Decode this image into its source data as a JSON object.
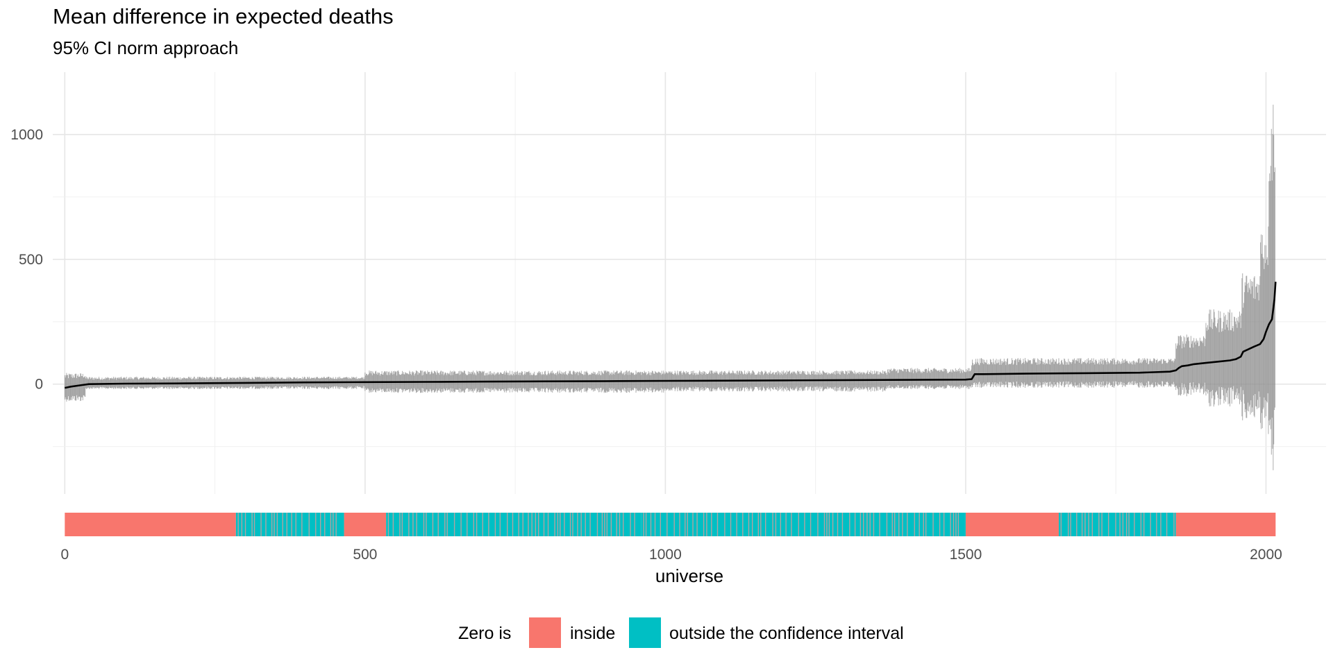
{
  "chart_data": {
    "type": "line",
    "title": "Mean difference in expected deaths",
    "subtitle": "95% CI norm approach",
    "xlabel": "universe",
    "ylabel": "",
    "xlim": [
      -20,
      2100
    ],
    "ylim": [
      -440,
      1250
    ],
    "x_ticks": [
      0,
      500,
      1000,
      1500,
      2000
    ],
    "x_tick_labels": [
      "0",
      "500",
      "1000",
      "1500",
      "2000"
    ],
    "y_ticks": [
      0,
      500,
      1000
    ],
    "y_tick_labels": [
      "0",
      "500",
      "1000"
    ],
    "grid": true,
    "legend_position": "bottom",
    "n_universes": 2016,
    "mean_curve": {
      "x": [
        0,
        10,
        25,
        40,
        100,
        200,
        300,
        400,
        500,
        600,
        700,
        800,
        900,
        1000,
        1100,
        1200,
        1300,
        1400,
        1500,
        1510,
        1515,
        1530,
        1600,
        1700,
        1790,
        1840,
        1850,
        1855,
        1860,
        1870,
        1880,
        1900,
        1920,
        1940,
        1950,
        1958,
        1962,
        1980,
        1990,
        1996,
        2000,
        2005,
        2010,
        2012,
        2014,
        2016
      ],
      "y": [
        -15,
        -10,
        -5,
        0,
        2,
        3,
        5,
        7,
        8,
        9,
        10,
        11,
        12,
        13,
        14,
        15,
        16,
        17,
        18,
        20,
        40,
        40,
        42,
        44,
        46,
        50,
        55,
        65,
        72,
        75,
        80,
        85,
        90,
        95,
        100,
        110,
        130,
        150,
        160,
        180,
        210,
        240,
        260,
        300,
        340,
        410
      ]
    },
    "ci_whiskers": [
      {
        "x": [
          0,
          35
        ],
        "lower": -70,
        "upper": 45
      },
      {
        "x": [
          35,
          500
        ],
        "lower": -20,
        "upper": 30
      },
      {
        "x": [
          500,
          1000
        ],
        "lower": -35,
        "upper": 55
      },
      {
        "x": [
          1000,
          1370
        ],
        "lower": -30,
        "upper": 55
      },
      {
        "x": [
          1370,
          1510
        ],
        "lower": -20,
        "upper": 65
      },
      {
        "x": [
          1510,
          1850
        ],
        "lower": -15,
        "upper": 105
      },
      {
        "x": [
          1850,
          1900
        ],
        "lower": -50,
        "upper": 200
      },
      {
        "x": [
          1900,
          1960
        ],
        "lower": -90,
        "upper": 300
      },
      {
        "x": [
          1960,
          1990
        ],
        "lower": -150,
        "upper": 450
      },
      {
        "x": [
          1990,
          2005
        ],
        "lower": -220,
        "upper": 650
      },
      {
        "x": [
          2005,
          2016
        ],
        "lower": -400,
        "upper": 1190
      }
    ],
    "zero_status_strip": {
      "legend_title": "Zero is",
      "categories": [
        "inside",
        "outside the confidence interval"
      ],
      "colors": {
        "inside": "#F8766D",
        "outside the confidence interval": "#00BFC4"
      },
      "segments": [
        {
          "from": 0,
          "to": 285,
          "status": "inside"
        },
        {
          "from": 285,
          "to": 465,
          "status": "outside the confidence interval"
        },
        {
          "from": 465,
          "to": 535,
          "status": "inside"
        },
        {
          "from": 535,
          "to": 960,
          "status": "outside the confidence interval"
        },
        {
          "from": 960,
          "to": 1385,
          "status": "outside the confidence interval"
        },
        {
          "from": 1385,
          "to": 1500,
          "status": "outside the confidence interval"
        },
        {
          "from": 1500,
          "to": 1655,
          "status": "inside"
        },
        {
          "from": 1655,
          "to": 1850,
          "status": "outside the confidence interval"
        },
        {
          "from": 1850,
          "to": 2016,
          "status": "inside"
        }
      ]
    },
    "colors": {
      "mean_line": "#000000",
      "whisker": "#8c8c8c",
      "grid_major": "#e6e6e6",
      "grid_minor": "#f0f0f0"
    }
  }
}
